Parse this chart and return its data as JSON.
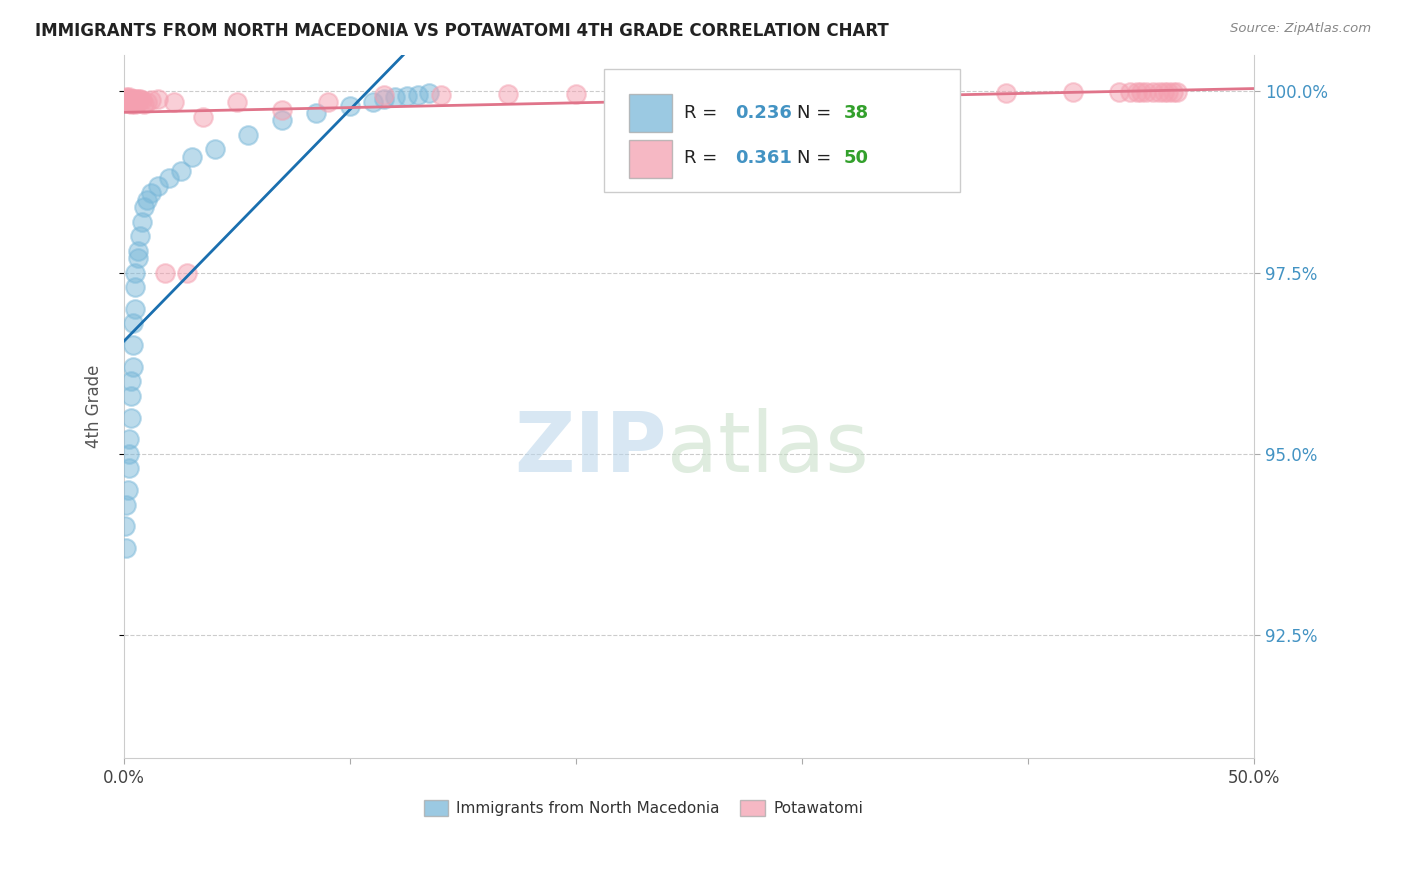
{
  "title": "IMMIGRANTS FROM NORTH MACEDONIA VS POTAWATOMI 4TH GRADE CORRELATION CHART",
  "source": "Source: ZipAtlas.com",
  "ylabel_label": "4th Grade",
  "xlim": [
    0.0,
    0.5
  ],
  "ylim": [
    0.908,
    1.005
  ],
  "yticks": [
    0.925,
    0.95,
    0.975,
    1.0
  ],
  "ytick_labels": [
    "92.5%",
    "95.0%",
    "97.5%",
    "100.0%"
  ],
  "blue_R": "0.236",
  "blue_N": "38",
  "pink_R": "0.361",
  "pink_N": "50",
  "blue_color": "#7ab8d9",
  "pink_color": "#f4a0b0",
  "blue_line_color": "#1a6faf",
  "pink_line_color": "#e0748a",
  "legend_R_color": "#4393c3",
  "legend_N_color": "#33a02c",
  "blue_x": [
    0.0005,
    0.001,
    0.001,
    0.0015,
    0.002,
    0.002,
    0.002,
    0.003,
    0.003,
    0.003,
    0.004,
    0.004,
    0.004,
    0.005,
    0.005,
    0.005,
    0.006,
    0.006,
    0.007,
    0.008,
    0.009,
    0.01,
    0.012,
    0.015,
    0.02,
    0.025,
    0.03,
    0.04,
    0.055,
    0.07,
    0.085,
    0.1,
    0.11,
    0.115,
    0.12,
    0.125,
    0.13,
    0.135
  ],
  "blue_y": [
    0.94,
    0.937,
    0.943,
    0.945,
    0.95,
    0.948,
    0.952,
    0.955,
    0.958,
    0.96,
    0.962,
    0.965,
    0.968,
    0.97,
    0.973,
    0.975,
    0.977,
    0.978,
    0.98,
    0.982,
    0.984,
    0.985,
    0.986,
    0.987,
    0.988,
    0.989,
    0.991,
    0.992,
    0.994,
    0.996,
    0.997,
    0.998,
    0.9985,
    0.999,
    0.9992,
    0.9993,
    0.9995,
    0.9998
  ],
  "pink_x": [
    0.0005,
    0.001,
    0.001,
    0.0015,
    0.002,
    0.002,
    0.003,
    0.003,
    0.003,
    0.004,
    0.004,
    0.005,
    0.005,
    0.005,
    0.006,
    0.006,
    0.007,
    0.008,
    0.009,
    0.01,
    0.012,
    0.015,
    0.018,
    0.022,
    0.028,
    0.035,
    0.05,
    0.07,
    0.09,
    0.115,
    0.14,
    0.17,
    0.2,
    0.23,
    0.27,
    0.31,
    0.35,
    0.39,
    0.42,
    0.44,
    0.445,
    0.448,
    0.45,
    0.452,
    0.455,
    0.458,
    0.46,
    0.462,
    0.464,
    0.466
  ],
  "pink_y": [
    0.999,
    0.9992,
    0.9988,
    0.999,
    0.9992,
    0.9985,
    0.999,
    0.9988,
    0.9982,
    0.999,
    0.9985,
    0.999,
    0.9988,
    0.9982,
    0.999,
    0.9985,
    0.999,
    0.9988,
    0.9982,
    0.9985,
    0.9988,
    0.999,
    0.975,
    0.9985,
    0.975,
    0.9965,
    0.9985,
    0.9975,
    0.9985,
    0.9995,
    0.9995,
    0.9996,
    0.9996,
    0.9997,
    0.9997,
    0.9997,
    0.9998,
    0.9998,
    0.9999,
    0.9999,
    0.9999,
    0.9999,
    0.9999,
    0.9999,
    0.9999,
    0.9999,
    0.9999,
    0.9999,
    0.9999,
    0.9999
  ]
}
